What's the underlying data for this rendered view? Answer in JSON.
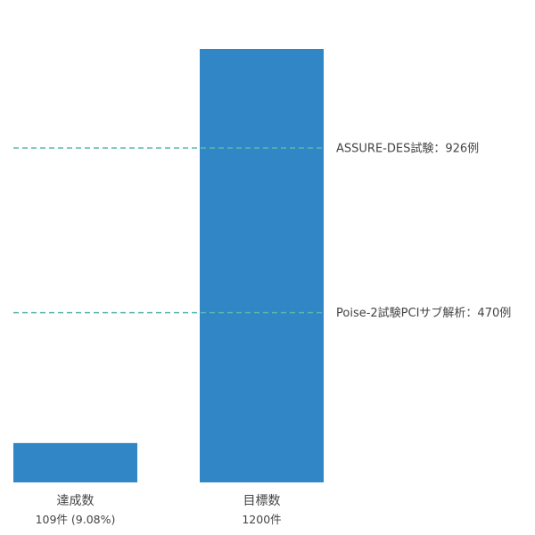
{
  "chart_data": {
    "type": "bar",
    "categories": [
      "達成数",
      "目標数"
    ],
    "values": [
      109,
      1200
    ],
    "value_labels": [
      "109件 (9.08%)",
      "1200件"
    ],
    "ylim": [
      0,
      1200
    ],
    "grid": false,
    "bar_color": "#3186c6",
    "reference_lines": [
      {
        "value": 926,
        "label": "ASSURE-DES試験：926例",
        "color": "#5bb8a8",
        "style": "dashed"
      },
      {
        "value": 470,
        "label": "Poise-2試験PCIサブ解析：470例",
        "color": "#5bb8a8",
        "style": "dashed"
      }
    ]
  }
}
